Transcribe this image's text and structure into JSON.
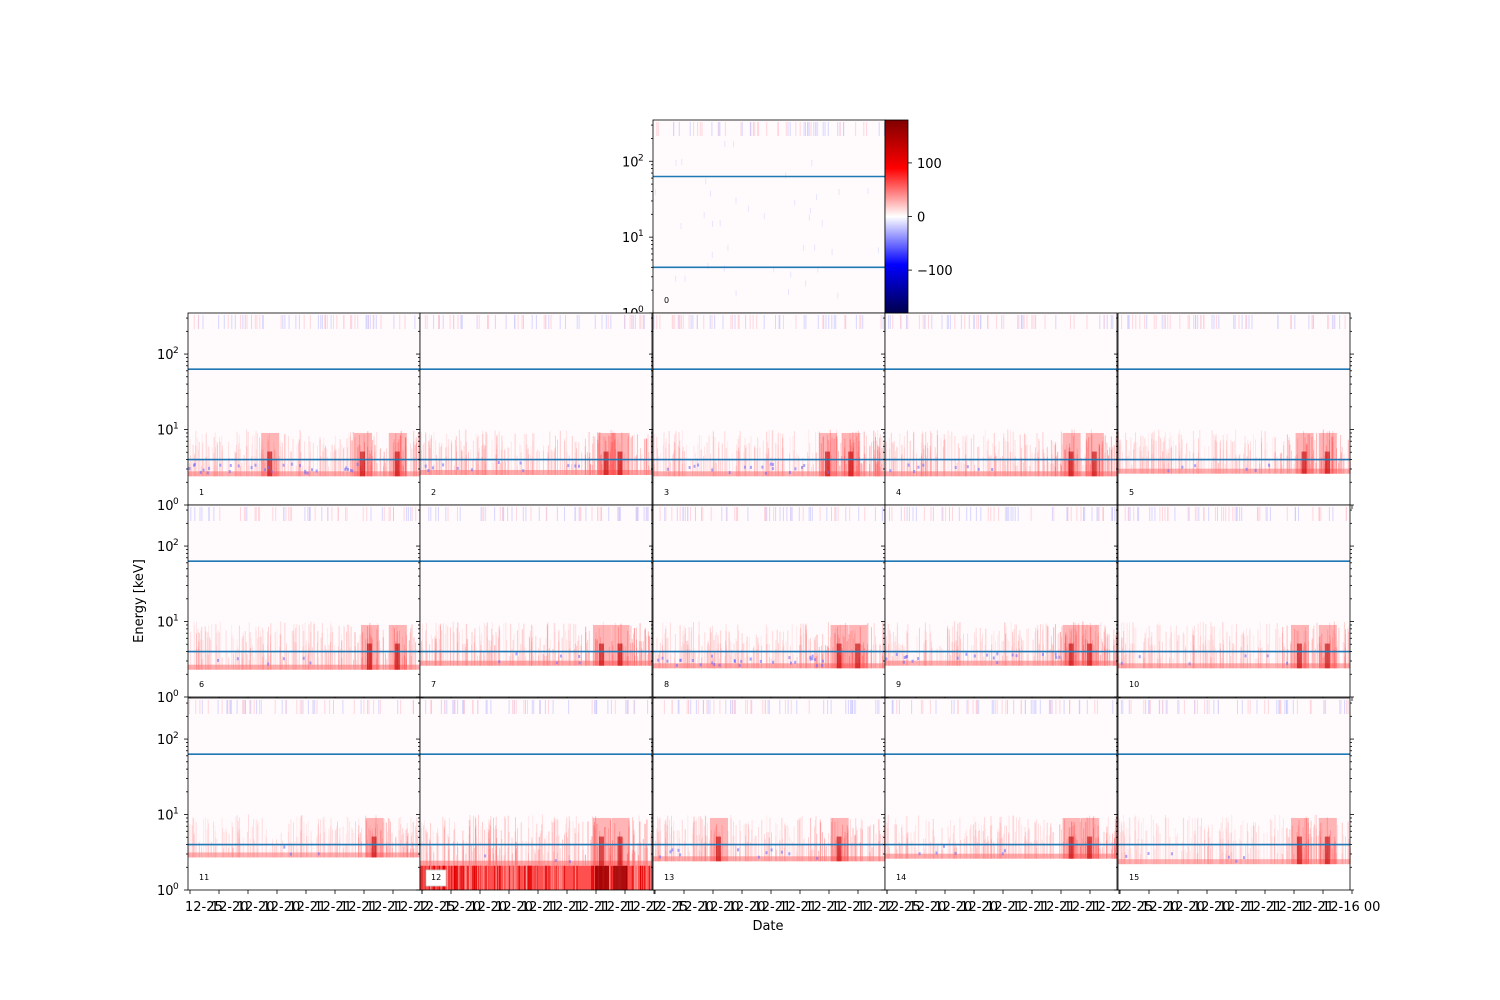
{
  "figure": {
    "xlabel": "Date",
    "ylabel": "Energy [keV]",
    "background": "#ffffff"
  },
  "colorbar": {
    "colormap": "seismic",
    "vmin": -180,
    "vmax": 180,
    "ticks": [
      {
        "value": 100,
        "label": "100"
      },
      {
        "value": 0,
        "label": "0"
      },
      {
        "value": -100,
        "label": "−100"
      }
    ]
  },
  "chart_data": {
    "type": "heatmap",
    "y_scale": "log",
    "ylim": [
      1,
      350
    ],
    "y_ticks": [
      {
        "value": 1,
        "label": "10",
        "exp": "0"
      },
      {
        "value": 10,
        "label": "10",
        "exp": "1"
      },
      {
        "value": 100,
        "label": "10",
        "exp": "2"
      }
    ],
    "x_tick_labels": [
      "12-25",
      "12-20",
      "12-20",
      "12-20",
      "12-21",
      "12-21",
      "12-21",
      "12-21",
      "12-22",
      "12-16 00"
    ],
    "threshold_lines_keV": [
      4,
      63
    ],
    "threshold_line_color": "#1f77b4",
    "panel_ids": [
      "0",
      "1",
      "2",
      "3",
      "4",
      "5",
      "6",
      "7",
      "8",
      "9",
      "10",
      "11",
      "12",
      "13",
      "14",
      "15"
    ],
    "panel_features": [
      {
        "id": "0",
        "low_cut_keV": 1.0,
        "red_level": 0.0,
        "blue_level": 0.25,
        "storms": []
      },
      {
        "id": "1",
        "low_cut_keV": 2.4,
        "red_level": 0.45,
        "blue_level": 0.5,
        "storms": [
          0.35,
          0.75,
          0.9
        ]
      },
      {
        "id": "2",
        "low_cut_keV": 2.5,
        "red_level": 0.5,
        "blue_level": 0.2,
        "storms": [
          0.8,
          0.86
        ]
      },
      {
        "id": "3",
        "low_cut_keV": 2.4,
        "red_level": 0.45,
        "blue_level": 0.3,
        "storms": [
          0.75,
          0.85
        ]
      },
      {
        "id": "4",
        "low_cut_keV": 2.4,
        "red_level": 0.5,
        "blue_level": 0.15,
        "storms": [
          0.8,
          0.9
        ]
      },
      {
        "id": "5",
        "low_cut_keV": 2.6,
        "red_level": 0.45,
        "blue_level": 0.1,
        "storms": [
          0.8,
          0.9
        ]
      },
      {
        "id": "6",
        "low_cut_keV": 2.3,
        "red_level": 0.45,
        "blue_level": 0.1,
        "storms": [
          0.78,
          0.9
        ]
      },
      {
        "id": "7",
        "low_cut_keV": 2.6,
        "red_level": 0.5,
        "blue_level": 0.1,
        "storms": [
          0.78,
          0.86
        ]
      },
      {
        "id": "8",
        "low_cut_keV": 2.4,
        "red_level": 0.5,
        "blue_level": 0.5,
        "storms": [
          0.8,
          0.88
        ]
      },
      {
        "id": "9",
        "low_cut_keV": 2.6,
        "red_level": 0.45,
        "blue_level": 0.35,
        "storms": [
          0.8,
          0.88
        ]
      },
      {
        "id": "10",
        "low_cut_keV": 2.4,
        "red_level": 0.4,
        "blue_level": 0.1,
        "storms": [
          0.78,
          0.9
        ]
      },
      {
        "id": "11",
        "low_cut_keV": 2.7,
        "red_level": 0.35,
        "blue_level": 0.05,
        "storms": [
          0.8
        ]
      },
      {
        "id": "12",
        "low_cut_keV": 2.1,
        "red_level": 0.55,
        "blue_level": 0.05,
        "storms": [
          0.78,
          0.86
        ],
        "saturated_band": [
          1.0,
          2.1
        ]
      },
      {
        "id": "13",
        "low_cut_keV": 2.4,
        "red_level": 0.45,
        "blue_level": 0.2,
        "storms": [
          0.28,
          0.8
        ]
      },
      {
        "id": "14",
        "low_cut_keV": 2.6,
        "red_level": 0.45,
        "blue_level": 0.1,
        "storms": [
          0.8,
          0.88
        ]
      },
      {
        "id": "15",
        "low_cut_keV": 2.2,
        "red_level": 0.35,
        "blue_level": 0.1,
        "storms": [
          0.78,
          0.9
        ]
      }
    ]
  }
}
